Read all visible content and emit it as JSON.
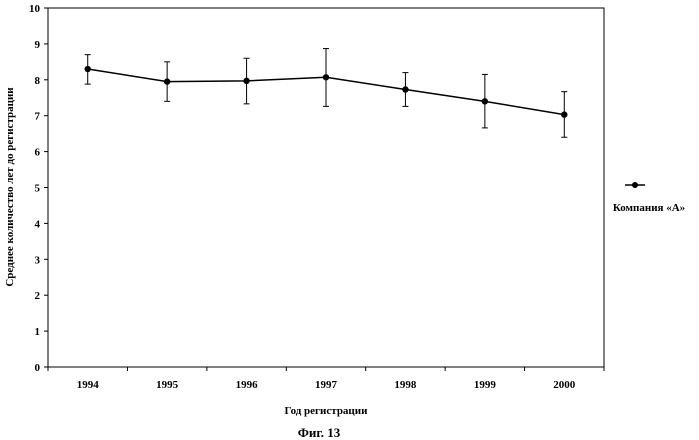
{
  "chart_data": {
    "type": "line",
    "title": "",
    "caption": "Фиг. 13",
    "xlabel": "Год регистрации",
    "ylabel": "Среднее количество лет до регистрации",
    "categories": [
      "1994",
      "1995",
      "1996",
      "1997",
      "1998",
      "1999",
      "2000"
    ],
    "ylim": [
      0,
      10
    ],
    "yticks": [
      "0",
      "1",
      "2",
      "3",
      "4",
      "5",
      "6",
      "7",
      "8",
      "9",
      "10"
    ],
    "grid": false,
    "legend_position": "right",
    "series": [
      {
        "name": "Компания «А»",
        "values": [
          8.3,
          7.95,
          7.97,
          8.07,
          7.73,
          7.4,
          7.03
        ],
        "error_low": [
          7.88,
          7.4,
          7.33,
          7.26,
          7.26,
          6.66,
          6.4
        ],
        "error_high": [
          8.7,
          8.5,
          8.6,
          8.87,
          8.2,
          8.15,
          7.67
        ],
        "color": "#000000"
      }
    ]
  }
}
